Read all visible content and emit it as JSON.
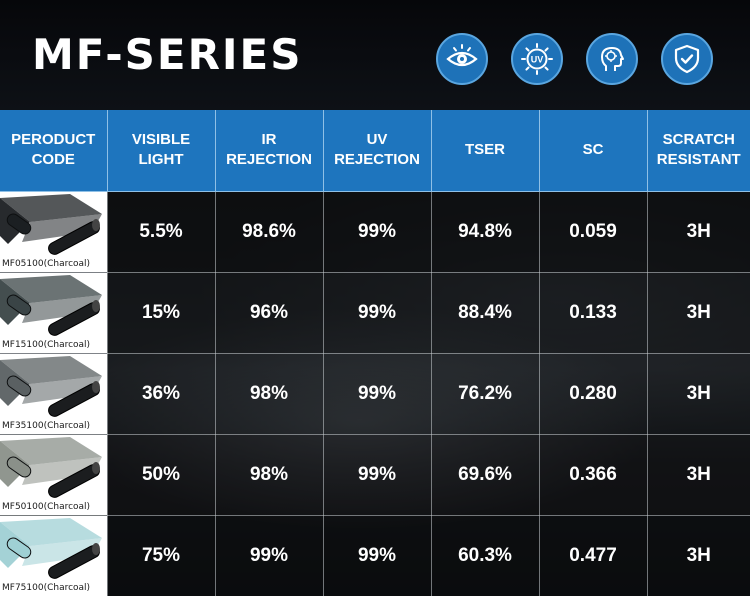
{
  "title": "MF-SERIES",
  "icons": [
    {
      "name": "eye-icon",
      "color": "#1e72b8"
    },
    {
      "name": "uv-icon",
      "label": "UV",
      "color": "#1e72b8"
    },
    {
      "name": "heat-person-icon",
      "color": "#1e72b8"
    },
    {
      "name": "shield-check-icon",
      "color": "#1e72b8"
    }
  ],
  "columns": [
    "PERODUCT CODE",
    "VISIBLE LIGHT",
    "IR REJECTION",
    "UV REJECTION",
    "TSER",
    "SC",
    "SCRATCH RESISTANT"
  ],
  "rows": [
    {
      "code": "MF05100(Charcoal)",
      "film_color": "#1b1f22",
      "visible_light": "5.5%",
      "ir_rejection": "98.6%",
      "uv_rejection": "99%",
      "tser": "94.8%",
      "sc": "0.059",
      "scratch": "3H"
    },
    {
      "code": "MF15100(Charcoal)",
      "film_color": "#3a4446",
      "visible_light": "15%",
      "ir_rejection": "96%",
      "uv_rejection": "99%",
      "tser": "88.4%",
      "sc": "0.133",
      "scratch": "3H"
    },
    {
      "code": "MF35100(Charcoal)",
      "film_color": "#5a6062",
      "visible_light": "36%",
      "ir_rejection": "98%",
      "uv_rejection": "99%",
      "tser": "76.2%",
      "sc": "0.280",
      "scratch": "3H"
    },
    {
      "code": "MF50100(Charcoal)",
      "film_color": "#8a9089",
      "visible_light": "50%",
      "ir_rejection": "98%",
      "uv_rejection": "99%",
      "tser": "69.6%",
      "sc": "0.366",
      "scratch": "3H"
    },
    {
      "code": "MF75100(Charcoal)",
      "film_color": "#9fd0d4",
      "visible_light": "75%",
      "ir_rejection": "99%",
      "uv_rejection": "99%",
      "tser": "60.3%",
      "sc": "0.477",
      "scratch": "3H"
    }
  ],
  "accent": "#1e75be"
}
